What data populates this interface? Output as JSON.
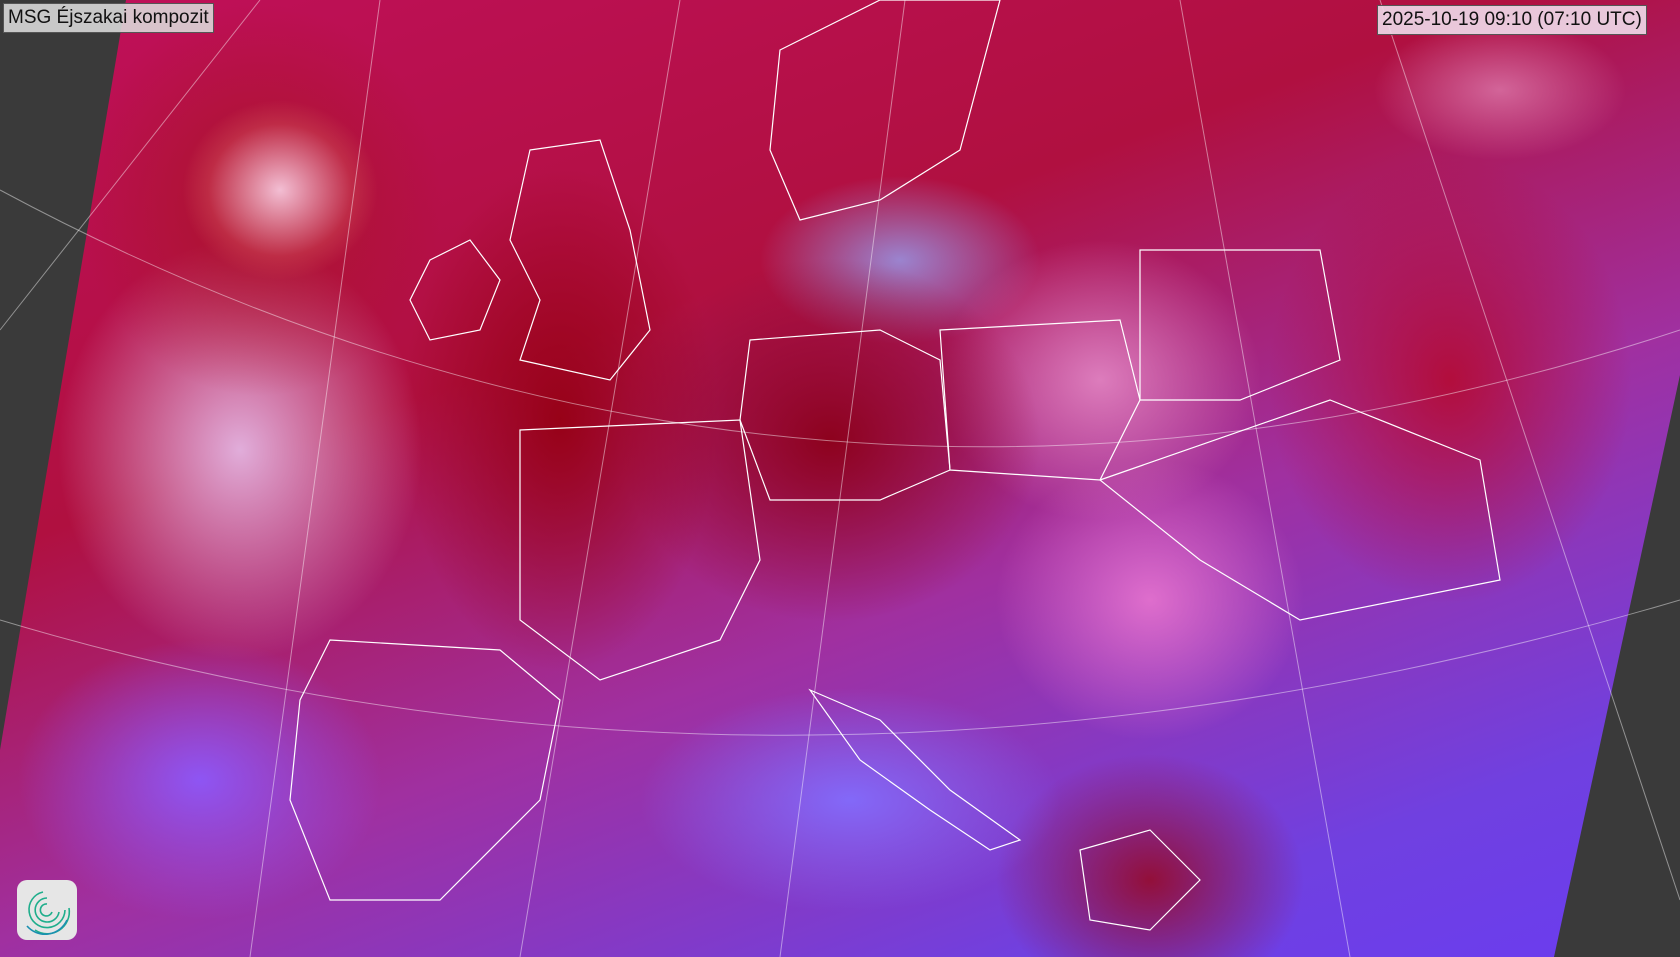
{
  "header": {
    "title": "MSG Éjszakai kompozit",
    "timestamp": "2025-10-19 09:10 (07:10 UTC)"
  },
  "map": {
    "product": "satellite-night-composite",
    "region": "Europe",
    "overlays": [
      "country-borders",
      "coastlines",
      "graticule"
    ],
    "colors": {
      "background": "#3a3a3a",
      "borders": "#ffffff",
      "low_cloud": "#c0105a",
      "high_cloud": "#a0102a",
      "clear_sea": "#6a3cf0"
    }
  },
  "logo": {
    "icon": "spiral-logo-icon",
    "color": "#1fae8c"
  }
}
